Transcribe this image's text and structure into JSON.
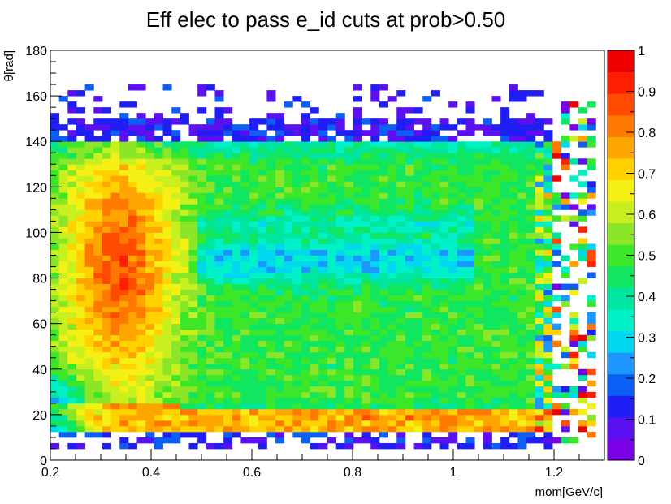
{
  "chart_data": {
    "type": "heatmap",
    "title": "Eff elec to pass e_id cuts at prob>0.50",
    "xlabel": "mom[GeV/c]",
    "ylabel": "θ[rad]",
    "xlim": [
      0.2,
      1.3
    ],
    "ylim": [
      0,
      180
    ],
    "zlim": [
      0,
      1
    ],
    "x_ticks": [
      "0.2",
      "0.4",
      "0.6",
      "0.8",
      "1",
      "1.2"
    ],
    "y_ticks": [
      "0",
      "20",
      "40",
      "60",
      "80",
      "100",
      "120",
      "140",
      "160",
      "180"
    ],
    "z_ticks": [
      "0",
      "0.1",
      "0.2",
      "0.3",
      "0.4",
      "0.5",
      "0.6",
      "0.7",
      "0.8",
      "0.9",
      "1"
    ],
    "bins": {
      "x_count": 64,
      "y_count": 72,
      "x_range": [
        0.2,
        1.3
      ],
      "y_range": [
        0,
        180
      ]
    },
    "regions": [
      {
        "name": "low-momentum high-efficiency band",
        "x_range": [
          0.22,
          0.45
        ],
        "y_range": [
          40,
          130
        ],
        "efficiency": 0.82
      },
      {
        "name": "central plateau",
        "x_range": [
          0.5,
          1.2
        ],
        "y_range": [
          40,
          135
        ],
        "efficiency": 0.55
      },
      {
        "name": "low-efficiency strip",
        "x_range": [
          0.55,
          1.0
        ],
        "y_range": [
          70,
          105
        ],
        "efficiency": 0.38
      },
      {
        "name": "forward band",
        "x_range": [
          0.4,
          1.2
        ],
        "y_range": [
          12,
          24
        ],
        "efficiency": 0.72
      },
      {
        "name": "edge noise",
        "x_range": [
          0.2,
          1.28
        ],
        "y_range": [
          5,
          165
        ],
        "efficiency": 0.15
      }
    ],
    "palette": [
      "#7A00E6",
      "#5A10F0",
      "#1E1EF5",
      "#0B5FF5",
      "#1E96FF",
      "#00D8F0",
      "#00F0C8",
      "#00E6A0",
      "#10E660",
      "#3CE628",
      "#8CE628",
      "#C8F01E",
      "#F5F014",
      "#FFD200",
      "#FFA500",
      "#FF7800",
      "#FF4B00",
      "#FF1E00",
      "#F00000"
    ],
    "grid": false,
    "legend": "right colorbar"
  }
}
